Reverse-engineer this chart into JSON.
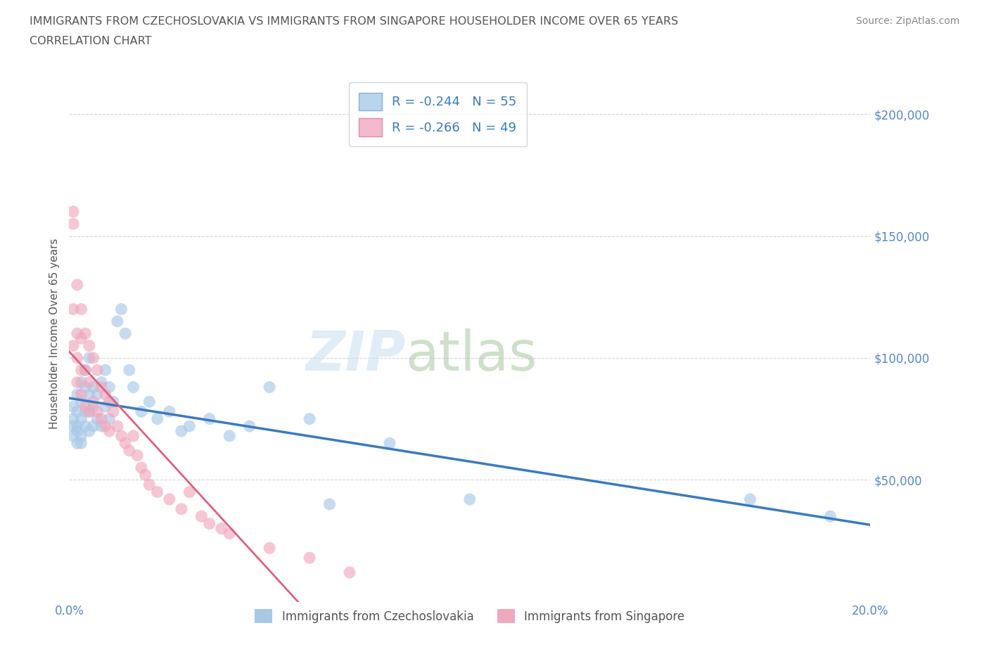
{
  "title_line1": "IMMIGRANTS FROM CZECHOSLOVAKIA VS IMMIGRANTS FROM SINGAPORE HOUSEHOLDER INCOME OVER 65 YEARS",
  "title_line2": "CORRELATION CHART",
  "source_text": "Source: ZipAtlas.com",
  "ylabel": "Householder Income Over 65 years",
  "xmin": 0.0,
  "xmax": 0.2,
  "ymin": 0,
  "ymax": 220000,
  "yticks": [
    0,
    50000,
    100000,
    150000,
    200000
  ],
  "ytick_labels": [
    "",
    "$50,000",
    "$100,000",
    "$150,000",
    "$200,000"
  ],
  "xticks": [
    0.0,
    0.05,
    0.1,
    0.15,
    0.2
  ],
  "xtick_labels": [
    "0.0%",
    "",
    "",
    "",
    "20.0%"
  ],
  "legend_label_czecho": "Immigrants from Czechoslovakia",
  "legend_label_sing": "Immigrants from Singapore",
  "R_czecho": -0.244,
  "N_czecho": 55,
  "R_sing": -0.266,
  "N_sing": 49,
  "color_czecho": "#a8c8e8",
  "color_sing": "#f0a8bc",
  "trendline_czecho_color": "#3a7bbf",
  "trendline_sing_color": "#e06080",
  "background_color": "#ffffff",
  "grid_color": "#cccccc",
  "title_color": "#555555",
  "axis_label_color": "#5588cc",
  "czecho_x": [
    0.001,
    0.001,
    0.001,
    0.001,
    0.002,
    0.002,
    0.002,
    0.002,
    0.002,
    0.003,
    0.003,
    0.003,
    0.003,
    0.003,
    0.004,
    0.004,
    0.004,
    0.004,
    0.005,
    0.005,
    0.005,
    0.005,
    0.006,
    0.006,
    0.006,
    0.007,
    0.007,
    0.008,
    0.008,
    0.009,
    0.009,
    0.01,
    0.01,
    0.011,
    0.012,
    0.013,
    0.014,
    0.015,
    0.016,
    0.018,
    0.02,
    0.022,
    0.025,
    0.028,
    0.03,
    0.035,
    0.04,
    0.045,
    0.05,
    0.06,
    0.065,
    0.08,
    0.1,
    0.17,
    0.19
  ],
  "czecho_y": [
    80000,
    75000,
    72000,
    68000,
    85000,
    78000,
    72000,
    65000,
    70000,
    90000,
    82000,
    75000,
    68000,
    65000,
    95000,
    88000,
    78000,
    72000,
    100000,
    85000,
    78000,
    70000,
    88000,
    80000,
    72000,
    85000,
    75000,
    90000,
    72000,
    95000,
    80000,
    88000,
    75000,
    82000,
    115000,
    120000,
    110000,
    95000,
    88000,
    78000,
    82000,
    75000,
    78000,
    70000,
    72000,
    75000,
    68000,
    72000,
    88000,
    75000,
    40000,
    65000,
    42000,
    42000,
    35000
  ],
  "sing_x": [
    0.001,
    0.001,
    0.001,
    0.001,
    0.002,
    0.002,
    0.002,
    0.002,
    0.003,
    0.003,
    0.003,
    0.003,
    0.004,
    0.004,
    0.004,
    0.005,
    0.005,
    0.005,
    0.006,
    0.006,
    0.007,
    0.007,
    0.008,
    0.008,
    0.009,
    0.009,
    0.01,
    0.01,
    0.011,
    0.012,
    0.013,
    0.014,
    0.015,
    0.016,
    0.017,
    0.018,
    0.019,
    0.02,
    0.022,
    0.025,
    0.028,
    0.03,
    0.033,
    0.035,
    0.038,
    0.04,
    0.05,
    0.06,
    0.07
  ],
  "sing_y": [
    155000,
    160000,
    120000,
    105000,
    130000,
    110000,
    100000,
    90000,
    120000,
    108000,
    95000,
    85000,
    110000,
    95000,
    80000,
    105000,
    90000,
    78000,
    100000,
    82000,
    95000,
    78000,
    88000,
    75000,
    85000,
    72000,
    82000,
    70000,
    78000,
    72000,
    68000,
    65000,
    62000,
    68000,
    60000,
    55000,
    52000,
    48000,
    45000,
    42000,
    38000,
    45000,
    35000,
    32000,
    30000,
    28000,
    22000,
    18000,
    12000
  ]
}
